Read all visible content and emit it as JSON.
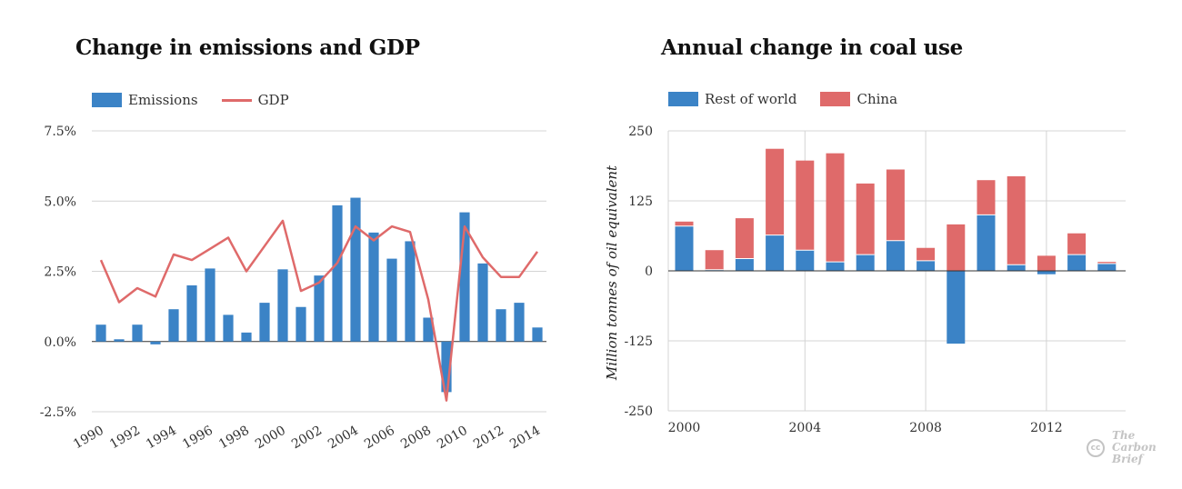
{
  "chart_data": [
    {
      "type": "bar",
      "title": "Change in emissions and GDP",
      "xlabel": "",
      "ylabel": "",
      "categories": [
        "1990",
        "1991",
        "1992",
        "1993",
        "1994",
        "1995",
        "1996",
        "1997",
        "1998",
        "1999",
        "2000",
        "2001",
        "2002",
        "2003",
        "2004",
        "2005",
        "2006",
        "2007",
        "2008",
        "2009",
        "2010",
        "2011",
        "2012",
        "2013",
        "2014"
      ],
      "x_tick_labels": [
        "1990",
        "1992",
        "1994",
        "1996",
        "1998",
        "2000",
        "2002",
        "2004",
        "2006",
        "2008",
        "2010",
        "2012",
        "2014"
      ],
      "y_tick_labels": [
        "7.5%",
        "5.0%",
        "2.5%",
        "0.0%",
        "-2.5%"
      ],
      "y_ticks": [
        7.5,
        5.0,
        2.5,
        0.0,
        -2.5
      ],
      "ylim": [
        -2.5,
        7.5
      ],
      "legend": "top-left",
      "grid": true,
      "series": [
        {
          "name": "Emissions",
          "type": "bar",
          "color": "#3b83c6",
          "values": [
            0.6,
            0.08,
            0.6,
            -0.1,
            1.15,
            2.0,
            2.6,
            0.95,
            0.32,
            1.38,
            2.57,
            1.23,
            2.35,
            4.85,
            5.12,
            3.88,
            2.95,
            3.57,
            0.85,
            -1.8,
            4.6,
            2.78,
            1.15,
            1.38,
            0.5
          ]
        },
        {
          "name": "GDP",
          "type": "line",
          "color": "#df6a6a",
          "values": [
            2.9,
            1.4,
            1.9,
            1.6,
            3.1,
            2.9,
            3.3,
            3.7,
            2.5,
            3.4,
            4.3,
            1.8,
            2.1,
            2.8,
            4.1,
            3.6,
            4.1,
            3.9,
            1.5,
            -2.1,
            4.1,
            3.0,
            2.3,
            2.3,
            3.2
          ]
        }
      ]
    },
    {
      "type": "bar",
      "stacked": true,
      "title": "Annual change in coal use",
      "xlabel": "",
      "ylabel": "Million tonnes of oil equivalent",
      "categories": [
        "2000",
        "2001",
        "2002",
        "2003",
        "2004",
        "2005",
        "2006",
        "2007",
        "2008",
        "2009",
        "2010",
        "2011",
        "2012",
        "2013",
        "2014"
      ],
      "x_tick_labels": [
        "2000",
        "2004",
        "2008",
        "2012"
      ],
      "y_tick_labels": [
        "250",
        "125",
        "0",
        "-125",
        "-250"
      ],
      "y_ticks": [
        250,
        125,
        0,
        -125,
        -250
      ],
      "ylim": [
        -250,
        250
      ],
      "legend": "top-left",
      "grid": true,
      "series": [
        {
          "name": "Rest of world",
          "color": "#3b83c6",
          "values": [
            80,
            2,
            22,
            64,
            37,
            16,
            29,
            54,
            18,
            -130,
            100,
            11,
            -6,
            29,
            13
          ]
        },
        {
          "name": "China",
          "color": "#df6a6a",
          "values": [
            8,
            35,
            72,
            154,
            160,
            194,
            127,
            127,
            23,
            83,
            62,
            158,
            27,
            38,
            3
          ]
        }
      ]
    }
  ],
  "brand": {
    "cc": "cc",
    "line1": "The",
    "line2": "Carbon",
    "line3": "Brief"
  }
}
